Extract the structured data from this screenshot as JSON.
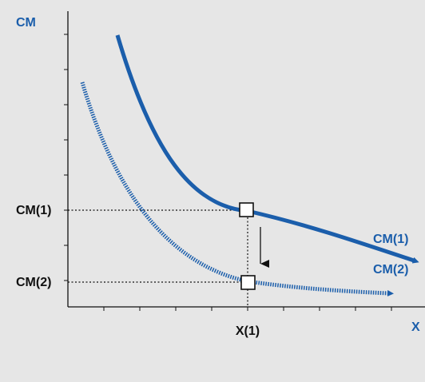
{
  "diagram": {
    "y_axis_label": "CM",
    "x_axis_label": "X",
    "y_tick_labels": [
      "CM(1)",
      "CM(2)"
    ],
    "x_tick_labels": [
      "X(1)"
    ],
    "curves": [
      {
        "label": "CM(1)",
        "style": "solid"
      },
      {
        "label": "CM(2)",
        "style": "dotted"
      }
    ],
    "shift_arrow": "down",
    "colors": {
      "background": "#e6e6e6",
      "curve": "#1b5eab",
      "axis_label": "#1b5eab",
      "axis": "#111111",
      "text": "#111111"
    }
  }
}
